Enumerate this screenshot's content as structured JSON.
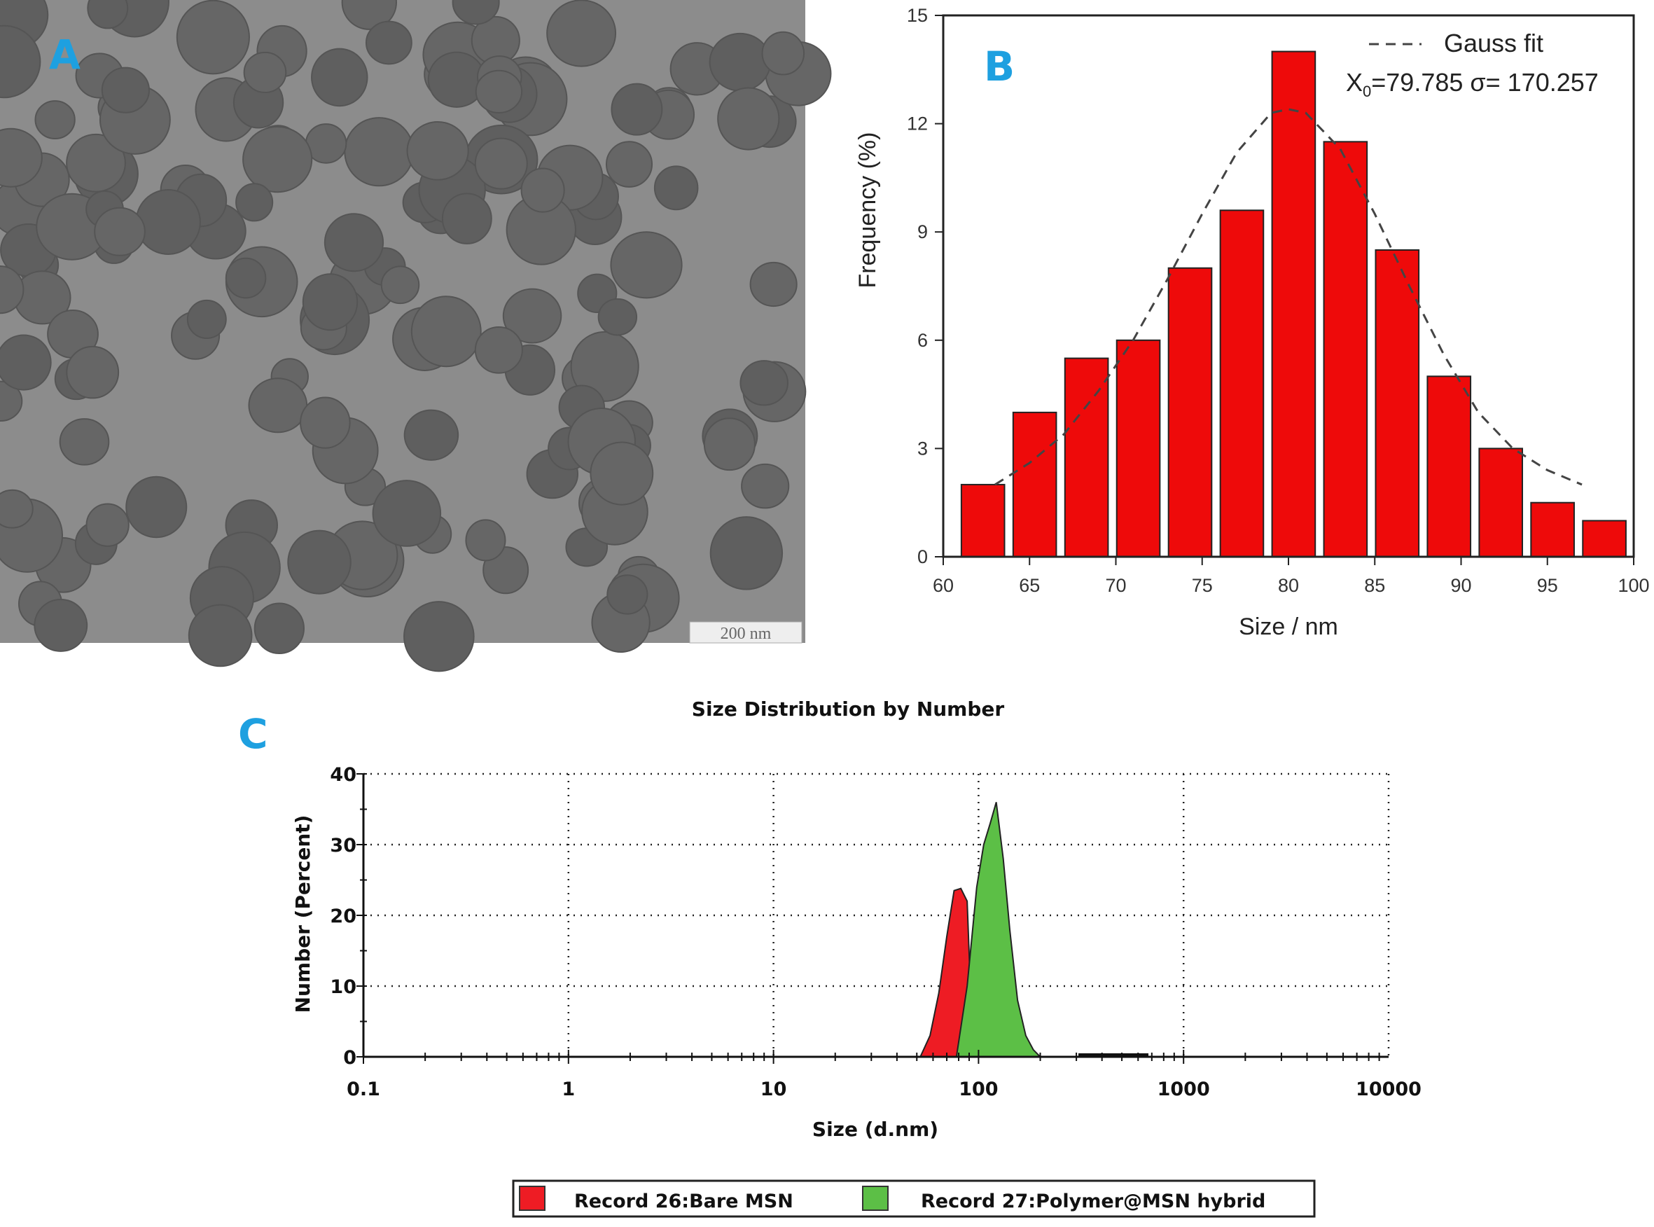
{
  "panels": {
    "a": {
      "label": "A",
      "scale_bar": "200 nm"
    },
    "b": {
      "label": "B"
    },
    "c": {
      "label": "C"
    }
  },
  "chart_data": [
    {
      "type": "bar",
      "panel": "B",
      "xlabel": "Size / nm",
      "ylabel": "Frequency (%)",
      "xlim": [
        60,
        100
      ],
      "ylim": [
        0,
        15
      ],
      "xticks": [
        60,
        65,
        70,
        75,
        80,
        85,
        90,
        95,
        100
      ],
      "yticks": [
        0,
        3,
        6,
        9,
        12,
        15
      ],
      "bar_color": "#ee0a0a",
      "bars": {
        "x": [
          62.3,
          65.3,
          68.3,
          71.3,
          74.3,
          77.3,
          80.3,
          83.3,
          86.3,
          89.3,
          92.3,
          95.3,
          98.3
        ],
        "values": [
          2,
          4,
          5.5,
          6,
          8,
          9.6,
          14,
          11.5,
          8.5,
          5,
          3,
          1.5,
          1
        ]
      },
      "fit_curve": {
        "name": "Gauss fit",
        "annotation_x0": "X",
        "annotation_sub": "0",
        "annotation_rest": "=79.785  σ= 170.257",
        "x": [
          63,
          65,
          67,
          69,
          71,
          73,
          75,
          77,
          79,
          80,
          81,
          83,
          85,
          87,
          89,
          91,
          93,
          95,
          97
        ],
        "y": [
          2.0,
          2.6,
          3.4,
          4.6,
          6.0,
          7.7,
          9.5,
          11.2,
          12.3,
          12.4,
          12.3,
          11.3,
          9.5,
          7.5,
          5.6,
          4.0,
          3.0,
          2.4,
          2.0
        ]
      },
      "grid": false
    },
    {
      "type": "area",
      "panel": "C",
      "title": "Size Distribution by Number",
      "xlabel": "Size (d.nm)",
      "ylabel": "Number (Percent)",
      "xscale": "log",
      "xlim": [
        0.1,
        10000
      ],
      "ylim": [
        0,
        40
      ],
      "xticks": [
        "0.1",
        "1",
        "10",
        "100",
        "1000",
        "10000"
      ],
      "yticks": [
        0,
        10,
        20,
        30,
        40
      ],
      "grid": true,
      "legend_placement": "bottom",
      "series": [
        {
          "name": "Record 26:Bare MSN",
          "color": "#ee1c24",
          "x": [
            52,
            58,
            64,
            70,
            76,
            82,
            88,
            94
          ],
          "y": [
            0,
            3,
            9,
            17,
            23.5,
            23.8,
            22,
            0
          ]
        },
        {
          "name": "Record 27:Polymer@MSN hybrid",
          "color": "#5cbf46",
          "x": [
            78,
            88,
            98,
            106,
            114,
            122,
            132,
            142,
            155,
            170,
            185,
            200
          ],
          "y": [
            0,
            10,
            24,
            30,
            33,
            36,
            28,
            18,
            8,
            3,
            1,
            0
          ]
        }
      ]
    }
  ]
}
